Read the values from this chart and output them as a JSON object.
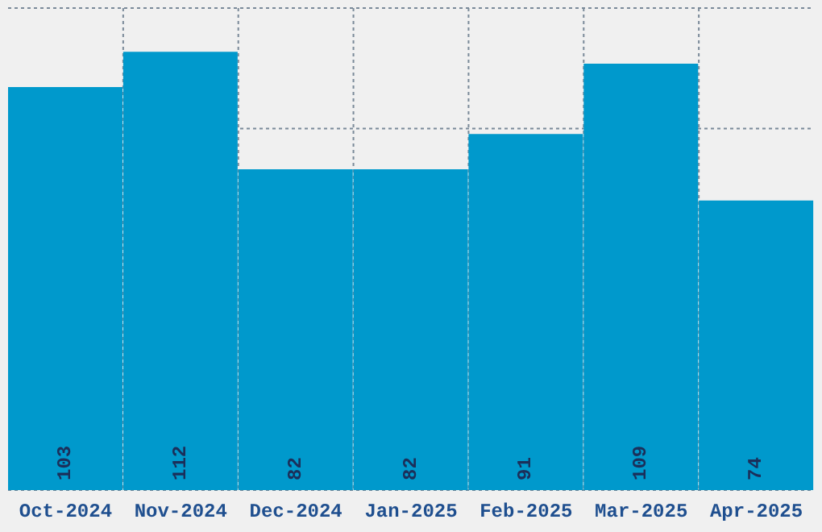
{
  "chart_data": {
    "type": "bar",
    "categories": [
      "Oct-2024",
      "Nov-2024",
      "Dec-2024",
      "Jan-2025",
      "Feb-2025",
      "Mar-2025",
      "Apr-2025"
    ],
    "values": [
      103,
      112,
      82,
      82,
      91,
      109,
      74
    ],
    "color": "#0099cc",
    "data_labels": true,
    "grid": true
  }
}
